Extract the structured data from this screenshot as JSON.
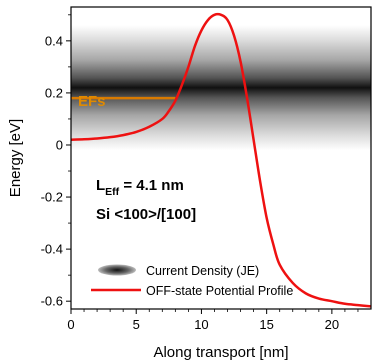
{
  "chart_data": {
    "type": "line",
    "title": "",
    "xlabel": "Along transport [nm]",
    "ylabel": "Energy [eV]",
    "xlim": [
      0,
      23
    ],
    "ylim": [
      -0.63,
      0.53
    ],
    "xticks": [
      "0",
      "5",
      "10",
      "15",
      "20"
    ],
    "xtick_values": [
      0,
      5,
      10,
      15,
      20
    ],
    "yticks": [
      "-0.6",
      "-0.4",
      "-0.2",
      "0",
      "0.2",
      "0.4"
    ],
    "ytick_values": [
      -0.6,
      -0.4,
      -0.2,
      0,
      0.2,
      0.4
    ],
    "grid": false,
    "legend_position": "bottom-right",
    "series": [
      {
        "name": "OFF-state Potential Profile",
        "color": "#ee1111",
        "x": [
          0,
          1,
          2,
          3,
          4,
          5,
          6,
          7,
          7.5,
          8,
          8.5,
          9,
          9.5,
          10,
          10.5,
          11,
          11.5,
          12,
          12.5,
          13,
          13.5,
          14,
          14.5,
          15,
          15.5,
          16,
          17,
          18,
          19,
          20,
          21,
          22,
          23
        ],
        "y": [
          0.02,
          0.022,
          0.025,
          0.03,
          0.038,
          0.05,
          0.07,
          0.1,
          0.13,
          0.17,
          0.23,
          0.3,
          0.38,
          0.44,
          0.48,
          0.5,
          0.5,
          0.48,
          0.42,
          0.32,
          0.18,
          0.02,
          -0.14,
          -0.28,
          -0.38,
          -0.46,
          -0.53,
          -0.57,
          -0.59,
          -0.6,
          -0.61,
          -0.615,
          -0.62
        ]
      },
      {
        "name": "Current Density (JE)",
        "type": "heatmap-band",
        "center": 0.22,
        "half_width": 0.24
      }
    ],
    "annotations": [
      {
        "text": "EFs",
        "color": "#e08a00"
      },
      {
        "text": "L",
        "sub": "Eff",
        "rest": " = 4.1 nm"
      },
      {
        "text": "Si <100>/[100]"
      }
    ],
    "fermi_level": {
      "y": 0.18,
      "x_start": 0,
      "x_end": 8,
      "color": "#d97a00"
    },
    "legend": [
      {
        "label": "Current Density (JE)"
      },
      {
        "label": "OFF-state Potential Profile"
      }
    ]
  }
}
